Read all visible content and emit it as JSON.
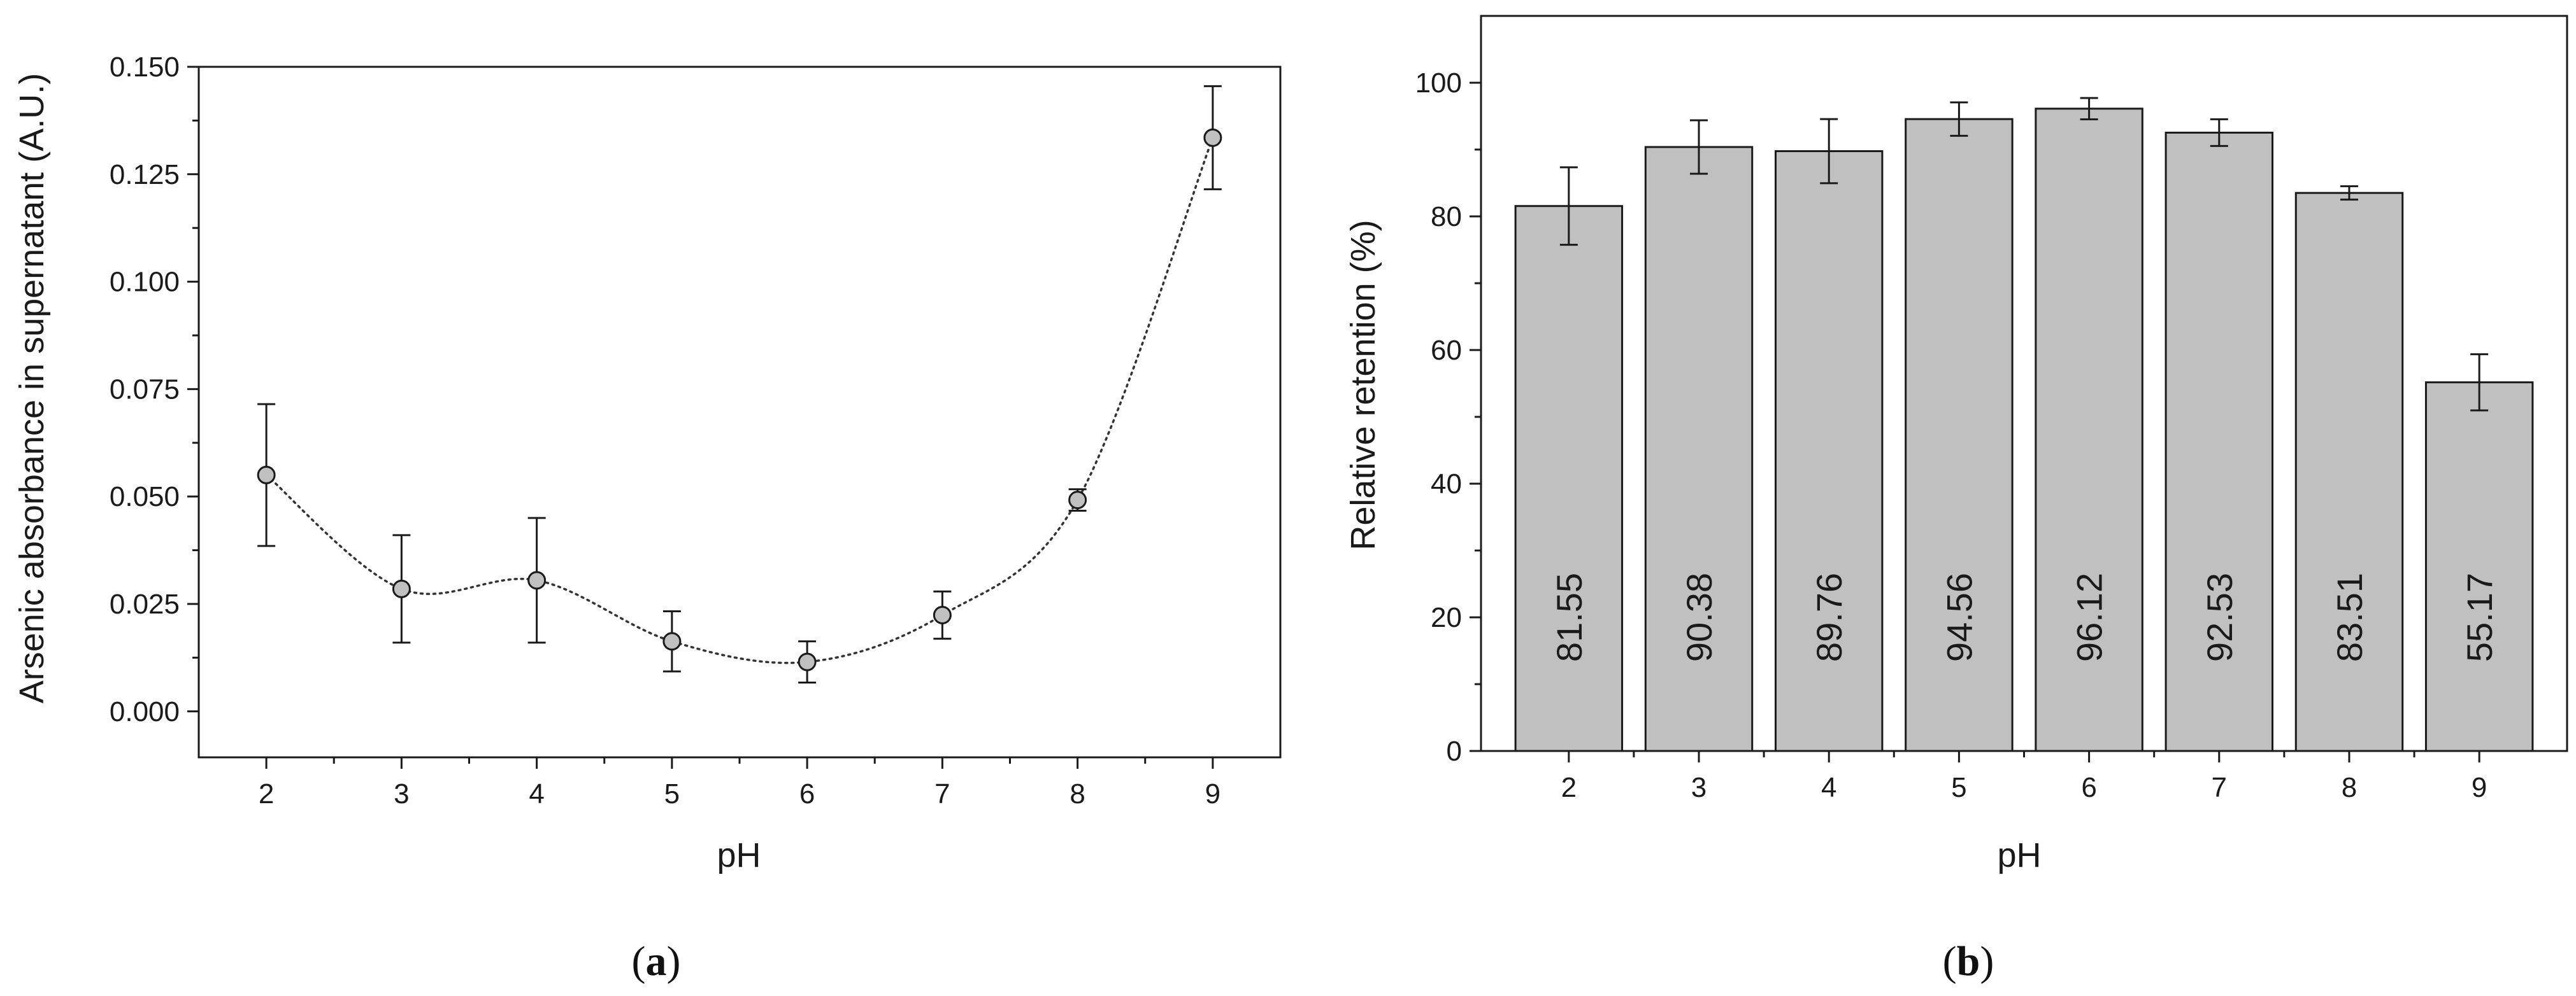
{
  "colors": {
    "axis": "#1a1a1a",
    "marker_fill": "#c0c0c0",
    "bar_fill": "#c0c0c0",
    "curve": "#333333"
  },
  "chart_data": [
    {
      "type": "scatter",
      "panel_label": {
        "open": "(",
        "letter": "a",
        "close": ")"
      },
      "xlabel": "pH",
      "ylabel": "Arsenic absorbance in supernatant (A.U.)",
      "xlim": [
        1.5,
        9.5
      ],
      "ylim": [
        -0.0107,
        0.15
      ],
      "x_ticks": [
        2,
        3,
        4,
        5,
        6,
        7,
        8,
        9
      ],
      "x_tick_labels": [
        "2",
        "3",
        "4",
        "5",
        "6",
        "7",
        "8",
        "9"
      ],
      "y_ticks": [
        0.0,
        0.025,
        0.05,
        0.075,
        0.1,
        0.125,
        0.15
      ],
      "y_tick_labels": [
        "0.000",
        "0.025",
        "0.050",
        "0.075",
        "0.100",
        "0.125",
        "0.150"
      ],
      "grid": false,
      "trend_line": "dotted spline",
      "series": [
        {
          "x": [
            2,
            3,
            4,
            5,
            6,
            7,
            8,
            9
          ],
          "y": [
            0.055,
            0.0285,
            0.0305,
            0.0163,
            0.0115,
            0.0224,
            0.0492,
            0.1335
          ],
          "error": [
            0.0165,
            0.0125,
            0.0145,
            0.007,
            0.0048,
            0.0055,
            0.0025,
            0.012
          ]
        }
      ]
    },
    {
      "type": "bar",
      "panel_label": {
        "open": "(",
        "letter": "b",
        "close": ")"
      },
      "xlabel": "pH",
      "ylabel": "Relative retention (%)",
      "ylim": [
        0,
        110
      ],
      "categories": [
        "2",
        "3",
        "4",
        "5",
        "6",
        "7",
        "8",
        "9"
      ],
      "y_ticks": [
        0,
        20,
        40,
        60,
        80,
        100
      ],
      "y_tick_labels": [
        "0",
        "20",
        "40",
        "60",
        "80",
        "100"
      ],
      "grid": false,
      "series": [
        {
          "values": [
            81.55,
            90.38,
            89.76,
            94.56,
            96.12,
            92.53,
            83.51,
            55.17
          ],
          "error": [
            5.8,
            4.0,
            4.8,
            2.5,
            1.6,
            2.0,
            1.0,
            4.2
          ]
        }
      ],
      "value_labels": [
        "81.55",
        "90.38",
        "89.76",
        "94.56",
        "96.12",
        "92.53",
        "83.51",
        "55.17"
      ]
    }
  ]
}
